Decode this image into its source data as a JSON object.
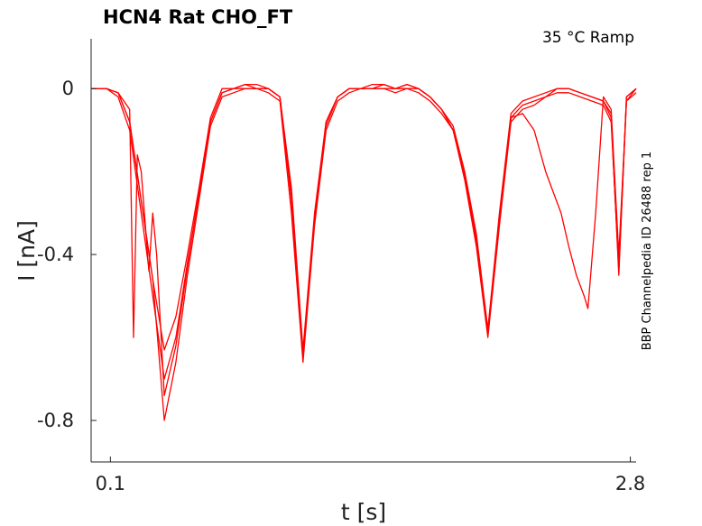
{
  "chart_data": {
    "type": "line",
    "title": "HCN4  Rat  CHO_FT",
    "condition": "35 °C  Ramp",
    "side_label": "BBP Channelpedia ID 26488 rep 1",
    "xlabel": "t [s]",
    "ylabel": "I [nA]",
    "x_ticks": [
      {
        "value": 0.1,
        "label": "0.1"
      },
      {
        "value": 2.8,
        "label": "2.8"
      }
    ],
    "y_ticks": [
      {
        "value": 0,
        "label": "0"
      },
      {
        "value": -0.4,
        "label": "-0.4"
      },
      {
        "value": -0.8,
        "label": "-0.8"
      }
    ],
    "xlim": [
      0.0,
      2.83
    ],
    "ylim": [
      -0.9,
      0.12
    ],
    "line_color": "#ff0000",
    "grid": false,
    "series": [
      {
        "x": [
          0.0,
          0.08,
          0.14,
          0.2,
          0.26,
          0.32,
          0.38,
          0.44,
          0.5,
          0.56,
          0.62,
          0.68,
          0.74,
          0.8,
          0.86,
          0.92,
          0.98,
          1.04,
          1.1,
          1.16,
          1.22,
          1.28,
          1.34,
          1.4,
          1.46,
          1.52,
          1.58,
          1.64,
          1.7,
          1.76,
          1.82,
          1.88,
          1.94,
          2.0,
          2.06,
          2.12,
          2.18,
          2.2,
          2.22,
          2.24,
          2.3,
          2.36,
          2.42,
          2.48,
          2.54,
          2.6,
          2.66,
          2.7,
          2.74,
          2.78,
          2.83
        ],
        "y": [
          0.0,
          0.0,
          -0.01,
          -0.08,
          -0.27,
          -0.46,
          -0.63,
          -0.55,
          -0.4,
          -0.24,
          -0.07,
          0.0,
          0.0,
          0.01,
          0.01,
          0.0,
          -0.02,
          -0.24,
          -0.63,
          -0.3,
          -0.08,
          -0.02,
          0.0,
          0.0,
          0.01,
          0.01,
          0.0,
          0.01,
          0.0,
          -0.02,
          -0.05,
          -0.09,
          -0.2,
          -0.35,
          -0.58,
          -0.3,
          -0.06,
          -0.05,
          -0.04,
          -0.03,
          -0.02,
          -0.01,
          0.0,
          0.0,
          -0.01,
          -0.02,
          -0.03,
          -0.06,
          -0.45,
          -0.02,
          0.0
        ]
      },
      {
        "x": [
          0.0,
          0.08,
          0.14,
          0.2,
          0.26,
          0.32,
          0.38,
          0.44,
          0.5,
          0.56,
          0.62,
          0.68,
          0.74,
          0.8,
          0.86,
          0.92,
          0.98,
          1.04,
          1.1,
          1.16,
          1.22,
          1.28,
          1.34,
          1.4,
          1.46,
          1.52,
          1.58,
          1.64,
          1.7,
          1.76,
          1.82,
          1.88,
          1.94,
          2.0,
          2.06,
          2.12,
          2.18,
          2.2,
          2.22,
          2.24,
          2.3,
          2.36,
          2.42,
          2.48,
          2.54,
          2.6,
          2.66,
          2.7,
          2.74,
          2.78,
          2.83
        ],
        "y": [
          0.0,
          0.0,
          -0.01,
          -0.08,
          -0.27,
          -0.46,
          -0.8,
          -0.66,
          -0.45,
          -0.27,
          -0.09,
          -0.02,
          -0.01,
          0.0,
          0.0,
          -0.01,
          -0.03,
          -0.3,
          -0.66,
          -0.33,
          -0.1,
          -0.03,
          -0.01,
          0.0,
          0.0,
          0.0,
          -0.01,
          0.0,
          -0.01,
          -0.03,
          -0.06,
          -0.1,
          -0.22,
          -0.38,
          -0.6,
          -0.33,
          -0.08,
          -0.07,
          -0.06,
          -0.05,
          -0.04,
          -0.02,
          -0.01,
          -0.01,
          -0.02,
          -0.03,
          -0.04,
          -0.08,
          -0.43,
          -0.03,
          -0.01
        ]
      },
      {
        "x": [
          0.0,
          0.08,
          0.14,
          0.2,
          0.26,
          0.32,
          0.38,
          0.44,
          0.5,
          0.56,
          0.62,
          0.68,
          0.74,
          0.8,
          0.86,
          0.92,
          0.98,
          1.04,
          1.1,
          1.16,
          1.22,
          1.28,
          1.34,
          1.4,
          1.46,
          1.52,
          1.58,
          1.64,
          1.7,
          1.76,
          1.82,
          1.88,
          1.94,
          2.0,
          2.06,
          2.12,
          2.18,
          2.2,
          2.22,
          2.24,
          2.3,
          2.36,
          2.42,
          2.48,
          2.54,
          2.6,
          2.66,
          2.7,
          2.74,
          2.78,
          2.83
        ],
        "y": [
          0.0,
          0.0,
          -0.02,
          -0.1,
          -0.3,
          -0.5,
          -0.7,
          -0.6,
          -0.42,
          -0.26,
          -0.08,
          -0.01,
          0.0,
          0.01,
          0.0,
          0.0,
          -0.02,
          -0.27,
          -0.64,
          -0.32,
          -0.09,
          -0.02,
          0.0,
          0.0,
          0.0,
          0.01,
          0.0,
          0.01,
          0.0,
          -0.02,
          -0.05,
          -0.1,
          -0.21,
          -0.36,
          -0.59,
          -0.31,
          -0.07,
          -0.06,
          -0.05,
          -0.04,
          -0.03,
          -0.02,
          0.0,
          0.0,
          -0.01,
          -0.02,
          -0.03,
          -0.07,
          -0.44,
          -0.02,
          0.0
        ]
      },
      {
        "x": [
          0.0,
          0.08,
          0.14,
          0.2,
          0.22,
          0.24,
          0.26,
          0.3,
          0.32,
          0.34,
          0.38,
          0.44,
          0.5,
          0.56,
          0.62,
          0.68,
          0.74,
          0.8,
          0.86,
          0.92,
          0.98,
          1.04,
          1.1,
          1.16,
          1.22,
          1.28,
          1.34,
          1.4,
          1.46,
          1.52,
          1.58,
          1.64,
          1.7,
          1.76,
          1.82,
          1.88,
          1.94,
          2.0,
          2.06,
          2.12,
          2.18,
          2.24,
          2.3,
          2.36,
          2.4,
          2.44,
          2.48,
          2.52,
          2.56,
          2.58,
          2.62,
          2.66,
          2.7,
          2.74,
          2.78,
          2.83
        ],
        "y": [
          0.0,
          0.0,
          -0.01,
          -0.05,
          -0.6,
          -0.16,
          -0.2,
          -0.44,
          -0.3,
          -0.4,
          -0.74,
          -0.62,
          -0.43,
          -0.25,
          -0.08,
          -0.01,
          0.0,
          0.0,
          0.0,
          0.0,
          -0.02,
          -0.26,
          -0.64,
          -0.31,
          -0.08,
          -0.02,
          0.0,
          0.0,
          0.0,
          0.0,
          0.0,
          0.0,
          0.0,
          -0.02,
          -0.05,
          -0.1,
          -0.21,
          -0.37,
          -0.58,
          -0.32,
          -0.07,
          -0.06,
          -0.1,
          -0.2,
          -0.25,
          -0.3,
          -0.38,
          -0.45,
          -0.5,
          -0.53,
          -0.3,
          -0.02,
          -0.05,
          -0.4,
          -0.03,
          0.0
        ]
      }
    ]
  }
}
